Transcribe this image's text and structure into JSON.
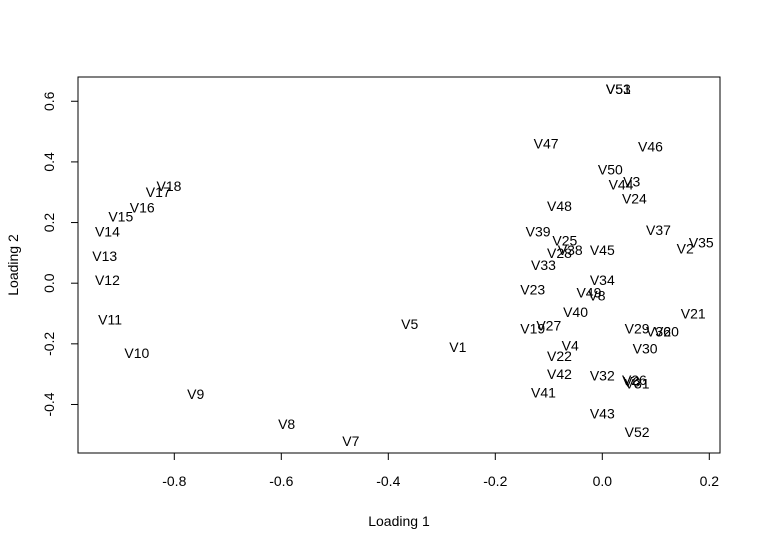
{
  "chart_data": {
    "type": "scatter",
    "title": "",
    "xlabel": "Loading 1",
    "ylabel": "Loading 2",
    "xlim": [
      -0.98,
      0.22
    ],
    "ylim": [
      -0.56,
      0.68
    ],
    "xticks": [
      -0.8,
      -0.6,
      -0.4,
      -0.2,
      0.0,
      0.2
    ],
    "yticks": [
      -0.4,
      -0.2,
      0.0,
      0.2,
      0.4,
      0.6
    ],
    "xtick_labels": [
      "-0.8",
      "-0.6",
      "-0.4",
      "-0.2",
      "0.0",
      "0.2"
    ],
    "ytick_labels": [
      "-0.4",
      "-0.2",
      "0.0",
      "0.2",
      "0.4",
      "0.6"
    ],
    "grid": false,
    "points": [
      {
        "label": "V1",
        "x": -0.27,
        "y": -0.21
      },
      {
        "label": "V2",
        "x": 0.155,
        "y": 0.115
      },
      {
        "label": "V3",
        "x": 0.055,
        "y": 0.335
      },
      {
        "label": "V4",
        "x": -0.06,
        "y": -0.205
      },
      {
        "label": "V5",
        "x": -0.36,
        "y": -0.135
      },
      {
        "label": "V6",
        "x": 0.055,
        "y": -0.325
      },
      {
        "label": "V7",
        "x": -0.47,
        "y": -0.52
      },
      {
        "label": "V8",
        "x": -0.59,
        "y": -0.465
      },
      {
        "label": "V9",
        "x": -0.76,
        "y": -0.365
      },
      {
        "label": "V10",
        "x": -0.87,
        "y": -0.23
      },
      {
        "label": "V11",
        "x": -0.92,
        "y": -0.12
      },
      {
        "label": "V12",
        "x": -0.925,
        "y": 0.01
      },
      {
        "label": "V13",
        "x": -0.93,
        "y": 0.09
      },
      {
        "label": "V14",
        "x": -0.925,
        "y": 0.17
      },
      {
        "label": "V15",
        "x": -0.9,
        "y": 0.22
      },
      {
        "label": "V16",
        "x": -0.86,
        "y": 0.25
      },
      {
        "label": "V17",
        "x": -0.83,
        "y": 0.3
      },
      {
        "label": "V18",
        "x": -0.81,
        "y": 0.32
      },
      {
        "label": "V19",
        "x": -0.13,
        "y": -0.15
      },
      {
        "label": "V20",
        "x": 0.12,
        "y": -0.16
      },
      {
        "label": "V21",
        "x": 0.17,
        "y": -0.1
      },
      {
        "label": "V22",
        "x": -0.08,
        "y": -0.24
      },
      {
        "label": "V23",
        "x": -0.13,
        "y": -0.02
      },
      {
        "label": "V24",
        "x": 0.06,
        "y": 0.28
      },
      {
        "label": "V25",
        "x": -0.07,
        "y": 0.14
      },
      {
        "label": "V26",
        "x": 0.06,
        "y": -0.32
      },
      {
        "label": "V27",
        "x": -0.1,
        "y": -0.14
      },
      {
        "label": "V28",
        "x": -0.08,
        "y": 0.1
      },
      {
        "label": "V29",
        "x": 0.065,
        "y": -0.15
      },
      {
        "label": "V30",
        "x": 0.08,
        "y": -0.215
      },
      {
        "label": "V31",
        "x": 0.065,
        "y": -0.33
      },
      {
        "label": "V32",
        "x": 0.0,
        "y": -0.305
      },
      {
        "label": "V33",
        "x": -0.11,
        "y": 0.06
      },
      {
        "label": "V34",
        "x": 0.0,
        "y": 0.01
      },
      {
        "label": "V35",
        "x": 0.185,
        "y": 0.135
      },
      {
        "label": "V36",
        "x": 0.105,
        "y": -0.16
      },
      {
        "label": "V37",
        "x": 0.105,
        "y": 0.175
      },
      {
        "label": "V38",
        "x": -0.06,
        "y": 0.11
      },
      {
        "label": "V39",
        "x": -0.12,
        "y": 0.17
      },
      {
        "label": "V40",
        "x": -0.05,
        "y": -0.095
      },
      {
        "label": "V41",
        "x": -0.11,
        "y": -0.36
      },
      {
        "label": "V42",
        "x": -0.08,
        "y": -0.3
      },
      {
        "label": "V43",
        "x": 0.0,
        "y": -0.43
      },
      {
        "label": "V44",
        "x": 0.035,
        "y": 0.325
      },
      {
        "label": "V45",
        "x": 0.0,
        "y": 0.11
      },
      {
        "label": "V46",
        "x": 0.09,
        "y": 0.45
      },
      {
        "label": "V47",
        "x": -0.105,
        "y": 0.46
      },
      {
        "label": "V48",
        "x": -0.08,
        "y": 0.255
      },
      {
        "label": "V49",
        "x": -0.025,
        "y": -0.03
      },
      {
        "label": "V50",
        "x": 0.015,
        "y": 0.375
      },
      {
        "label": "V51",
        "x": 0.03,
        "y": 0.64
      },
      {
        "label": "V52",
        "x": 0.065,
        "y": -0.49
      },
      {
        "label": "V53",
        "x": 0.03,
        "y": 0.64
      },
      {
        "label": "V8",
        "x": -0.01,
        "y": -0.04
      }
    ]
  }
}
